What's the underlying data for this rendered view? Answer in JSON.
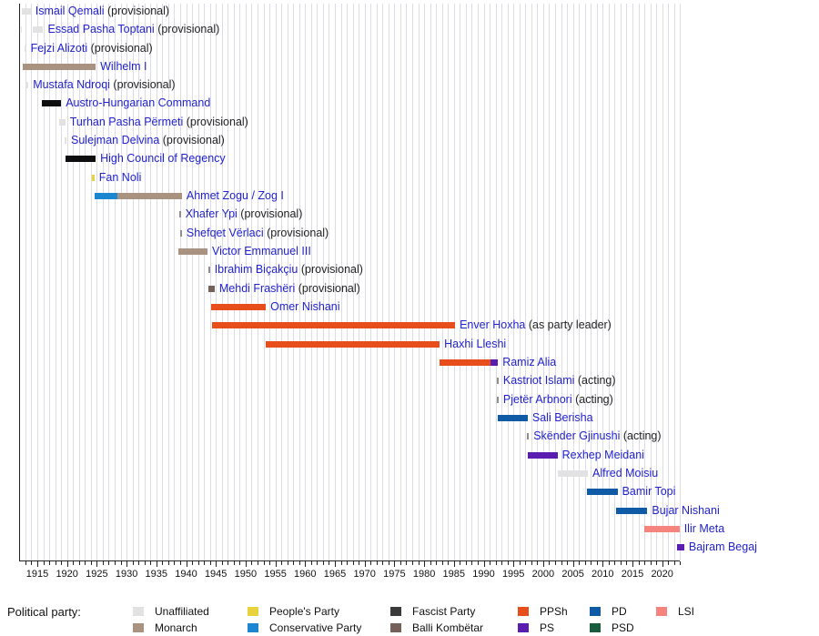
{
  "page": {
    "background": "#ffffff"
  },
  "legend": {
    "title": "Political party:"
  },
  "chart_data": {
    "type": "timeline",
    "title": "",
    "x_axis": {
      "min_year": 1912,
      "max_year": 2023.8,
      "labeled_ticks": [
        1915,
        1920,
        1925,
        1930,
        1935,
        1940,
        1945,
        1950,
        1955,
        1960,
        1965,
        1970,
        1975,
        1980,
        1985,
        1990,
        1995,
        2000,
        2005,
        2010,
        2015,
        2020
      ],
      "minor_tick_every": 1,
      "grid": true
    },
    "parties": [
      {
        "id": "unaffiliated",
        "label": "Unaffiliated",
        "color": "#E2E2E2"
      },
      {
        "id": "monarch",
        "label": "Monarch",
        "color": "#AA9280"
      },
      {
        "id": "peoples",
        "label": "People's Party",
        "color": "#E8D23E"
      },
      {
        "id": "conservative",
        "label": "Conservative Party",
        "color": "#1C86D1"
      },
      {
        "id": "fascist",
        "label": "Fascist Party",
        "color": "#3A3A3A"
      },
      {
        "id": "balli",
        "label": "Balli Kombëtar",
        "color": "#75605A"
      },
      {
        "id": "ppsh",
        "label": "PPSh",
        "color": "#E84E1B"
      },
      {
        "id": "ps",
        "label": "PS",
        "color": "#5B1DB0"
      },
      {
        "id": "pd",
        "label": "PD",
        "color": "#0F5BA6"
      },
      {
        "id": "psd",
        "label": "PSD",
        "color": "#1A5C3D"
      },
      {
        "id": "lsi",
        "label": "LSI",
        "color": "#F5847F"
      }
    ],
    "special_colors": {
      "occupation": "#0E0E0E",
      "tick": "#8E8E8E"
    },
    "legend_columns": [
      [
        "unaffiliated",
        "monarch"
      ],
      [
        "peoples",
        "conservative"
      ],
      [
        "fascist",
        "balli"
      ],
      [
        "ppsh",
        "ps"
      ],
      [
        "pd",
        "psd"
      ],
      [
        "lsi"
      ]
    ],
    "rows": [
      {
        "name": "Ismail Qemali",
        "suffix": "(provisional)",
        "segments": [
          {
            "party": "unaffiliated",
            "start": 1912.4,
            "end": 1913.9
          }
        ]
      },
      {
        "name": "Essad Pasha Toptani",
        "suffix": "(provisional)",
        "segments": [
          {
            "party": "unaffiliated",
            "start": 1912.2,
            "end": 1912.45
          },
          {
            "party": "unaffiliated",
            "start": 1914.3,
            "end": 1916.0
          }
        ]
      },
      {
        "name": "Fejzi Alizoti",
        "suffix": "(provisional)",
        "segments": [
          {
            "party": "unaffiliated",
            "start": 1912.8,
            "end": 1913.1
          }
        ]
      },
      {
        "name": "Wilhelm I",
        "suffix": "",
        "segments": [
          {
            "party": "monarch",
            "start": 1912.6,
            "end": 1924.8
          }
        ]
      },
      {
        "name": "Mustafa Ndroqi",
        "suffix": "(provisional)",
        "segments": [
          {
            "party": "unaffiliated",
            "start": 1913.2,
            "end": 1913.5
          }
        ]
      },
      {
        "name": "Austro-Hungarian Command",
        "suffix": "",
        "segments": [
          {
            "party": "occupation",
            "start": 1915.7,
            "end": 1919.0
          }
        ]
      },
      {
        "name": "Turhan Pasha Përmeti",
        "suffix": "(provisional)",
        "segments": [
          {
            "party": "unaffiliated",
            "start": 1918.7,
            "end": 1919.7
          }
        ]
      },
      {
        "name": "Sulejman Delvina",
        "suffix": "(provisional)",
        "segments": [
          {
            "party": "unaffiliated",
            "start": 1919.6,
            "end": 1919.9
          }
        ]
      },
      {
        "name": "High Council of Regency",
        "suffix": "",
        "segments": [
          {
            "party": "occupation",
            "start": 1919.7,
            "end": 1924.8
          }
        ]
      },
      {
        "name": "Fan Noli",
        "suffix": "",
        "segments": [
          {
            "party": "peoples",
            "start": 1924.1,
            "end": 1924.6
          }
        ]
      },
      {
        "name": "Ahmet Zogu / Zog I",
        "suffix": "",
        "segments": [
          {
            "party": "conservative",
            "start": 1924.7,
            "end": 1928.5
          },
          {
            "party": "monarch",
            "start": 1928.5,
            "end": 1939.3
          }
        ]
      },
      {
        "name": "Xhafer Ypi",
        "suffix": "(provisional)",
        "segments": [
          {
            "party": "tick",
            "start": 1938.8,
            "end": 1939.1
          }
        ]
      },
      {
        "name": "Shefqet Vërlaci",
        "suffix": "(provisional)",
        "segments": [
          {
            "party": "tick",
            "start": 1939.0,
            "end": 1939.3
          }
        ]
      },
      {
        "name": "Victor Emmanuel III",
        "suffix": "",
        "segments": [
          {
            "party": "monarch",
            "start": 1938.7,
            "end": 1943.6
          }
        ]
      },
      {
        "name": "Ibrahim Biçakçiu",
        "suffix": "(provisional)",
        "segments": [
          {
            "party": "tick",
            "start": 1943.7,
            "end": 1944.0
          }
        ]
      },
      {
        "name": "Mehdi Frashëri",
        "suffix": "(provisional)",
        "segments": [
          {
            "party": "balli",
            "start": 1943.7,
            "end": 1944.8
          }
        ]
      },
      {
        "name": "Omer Nishani",
        "suffix": "",
        "segments": [
          {
            "party": "ppsh",
            "start": 1944.2,
            "end": 1953.4
          }
        ]
      },
      {
        "name": "Enver Hoxha",
        "suffix": "(as party leader)",
        "segments": [
          {
            "party": "ppsh",
            "start": 1944.4,
            "end": 1985.2
          }
        ]
      },
      {
        "name": "Haxhi Lleshi",
        "suffix": "",
        "segments": [
          {
            "party": "ppsh",
            "start": 1953.4,
            "end": 1982.6
          }
        ]
      },
      {
        "name": "Ramiz Alia",
        "suffix": "",
        "segments": [
          {
            "party": "ppsh",
            "start": 1982.6,
            "end": 1991.2
          },
          {
            "party": "ps",
            "start": 1991.2,
            "end": 1992.4
          }
        ]
      },
      {
        "name": "Kastriot Islami",
        "suffix": "(acting)",
        "segments": [
          {
            "party": "tick",
            "start": 1992.2,
            "end": 1992.5
          }
        ]
      },
      {
        "name": "Pjetër Arbnori",
        "suffix": "(acting)",
        "segments": [
          {
            "party": "tick",
            "start": 1992.2,
            "end": 1992.5
          }
        ]
      },
      {
        "name": "Sali Berisha",
        "suffix": "",
        "segments": [
          {
            "party": "pd",
            "start": 1992.4,
            "end": 1997.4
          }
        ]
      },
      {
        "name": "Skënder Gjinushi",
        "suffix": "(acting)",
        "segments": [
          {
            "party": "tick",
            "start": 1997.3,
            "end": 1997.6
          }
        ]
      },
      {
        "name": "Rexhep Meidani",
        "suffix": "",
        "segments": [
          {
            "party": "ps",
            "start": 1997.4,
            "end": 2002.4
          }
        ]
      },
      {
        "name": "Alfred Moisiu",
        "suffix": "",
        "segments": [
          {
            "party": "unaffiliated",
            "start": 2002.4,
            "end": 2007.5
          }
        ]
      },
      {
        "name": "Bamir Topi",
        "suffix": "",
        "segments": [
          {
            "party": "pd",
            "start": 2007.4,
            "end": 2012.5
          }
        ]
      },
      {
        "name": "Bujar Nishani",
        "suffix": "",
        "segments": [
          {
            "party": "pd",
            "start": 2012.3,
            "end": 2017.5
          }
        ]
      },
      {
        "name": "Ilir Meta",
        "suffix": "",
        "segments": [
          {
            "party": "lsi",
            "start": 2017.0,
            "end": 2022.9
          }
        ]
      },
      {
        "name": "Bajram Begaj",
        "suffix": "",
        "segments": [
          {
            "party": "ps",
            "start": 2022.5,
            "end": 2023.7
          }
        ]
      }
    ]
  }
}
